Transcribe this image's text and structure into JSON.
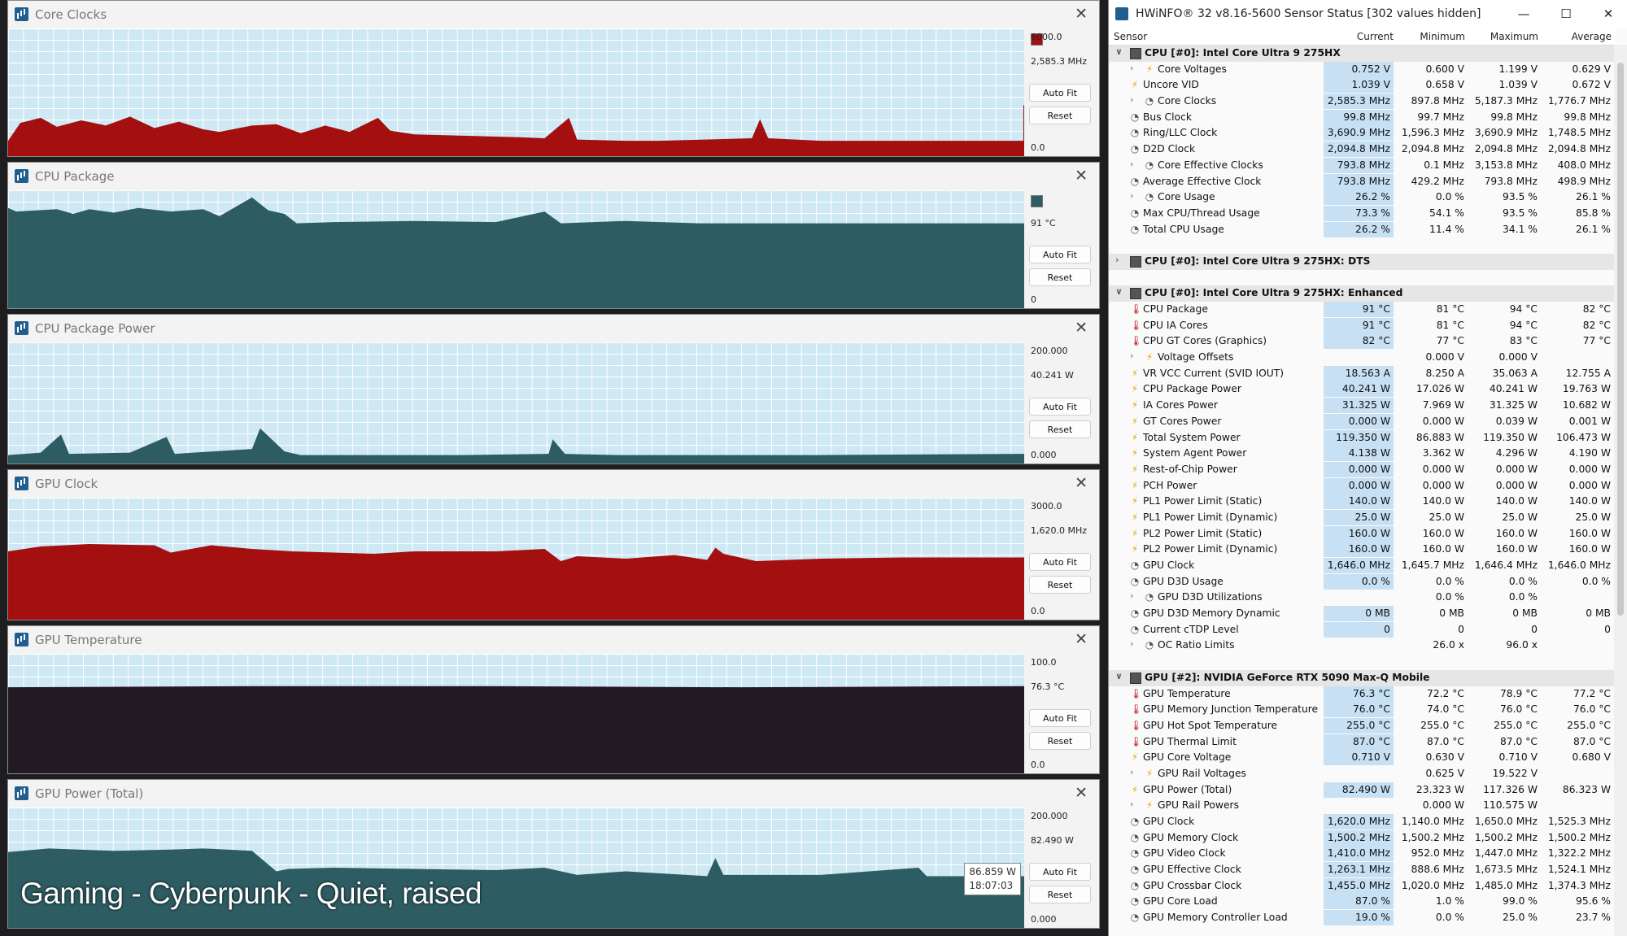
{
  "graphs": [
    {
      "title": "Core Clocks",
      "max": "6000.0",
      "current": "2,585.3 MHz",
      "min": "0.0",
      "auto_fit": "Auto Fit",
      "reset": "Reset",
      "color": "#a40f0f",
      "swatch": true,
      "series": [
        [
          0,
          0.12
        ],
        [
          15,
          0.26
        ],
        [
          40,
          0.3
        ],
        [
          60,
          0.23
        ],
        [
          90,
          0.28
        ],
        [
          120,
          0.24
        ],
        [
          150,
          0.31
        ],
        [
          180,
          0.22
        ],
        [
          210,
          0.27
        ],
        [
          240,
          0.21
        ],
        [
          260,
          0.19
        ],
        [
          300,
          0.24
        ],
        [
          330,
          0.25
        ],
        [
          360,
          0.18
        ],
        [
          390,
          0.24
        ],
        [
          420,
          0.19
        ],
        [
          455,
          0.3
        ],
        [
          470,
          0.2
        ],
        [
          500,
          0.17
        ],
        [
          560,
          0.16
        ],
        [
          620,
          0.15
        ],
        [
          660,
          0.14
        ],
        [
          690,
          0.3
        ],
        [
          700,
          0.13
        ],
        [
          760,
          0.12
        ],
        [
          800,
          0.12
        ],
        [
          915,
          0.14
        ],
        [
          925,
          0.29
        ],
        [
          935,
          0.14
        ],
        [
          1000,
          0.12
        ],
        [
          1100,
          0.12
        ],
        [
          1200,
          0.12
        ],
        [
          1249,
          0.12
        ],
        [
          1249,
          0.4
        ],
        [
          1251,
          0.4
        ],
        [
          1251,
          0.12
        ]
      ]
    },
    {
      "title": "CPU Package",
      "max": "",
      "current": "91 °C",
      "min": "0",
      "auto_fit": "Auto Fit",
      "reset": "Reset",
      "color": "#2d5c62",
      "swatch": true,
      "series": [
        [
          0,
          0.85
        ],
        [
          10,
          0.82
        ],
        [
          60,
          0.84
        ],
        [
          80,
          0.8
        ],
        [
          100,
          0.84
        ],
        [
          130,
          0.81
        ],
        [
          160,
          0.85
        ],
        [
          200,
          0.82
        ],
        [
          240,
          0.84
        ],
        [
          260,
          0.78
        ],
        [
          300,
          0.94
        ],
        [
          320,
          0.83
        ],
        [
          340,
          0.8
        ],
        [
          355,
          0.72
        ],
        [
          400,
          0.73
        ],
        [
          500,
          0.74
        ],
        [
          600,
          0.73
        ],
        [
          660,
          0.82
        ],
        [
          680,
          0.72
        ],
        [
          760,
          0.74
        ],
        [
          850,
          0.72
        ],
        [
          1000,
          0.72
        ],
        [
          1100,
          0.72
        ],
        [
          1250,
          0.72
        ]
      ]
    },
    {
      "title": "CPU Package Power",
      "max": "200.000",
      "current": "40.241 W",
      "min": "0.000",
      "auto_fit": "Auto Fit",
      "reset": "Reset",
      "color": "#2d5c62",
      "swatch": false,
      "series": [
        [
          0,
          0.07
        ],
        [
          40,
          0.09
        ],
        [
          65,
          0.24
        ],
        [
          75,
          0.08
        ],
        [
          150,
          0.09
        ],
        [
          195,
          0.22
        ],
        [
          205,
          0.08
        ],
        [
          300,
          0.12
        ],
        [
          310,
          0.29
        ],
        [
          340,
          0.1
        ],
        [
          360,
          0.07
        ],
        [
          560,
          0.07
        ],
        [
          665,
          0.08
        ],
        [
          670,
          0.2
        ],
        [
          685,
          0.08
        ],
        [
          750,
          0.07
        ],
        [
          1000,
          0.07
        ],
        [
          1250,
          0.08
        ]
      ]
    },
    {
      "title": "GPU Clock",
      "max": "3000.0",
      "current": "1,620.0 MHz",
      "min": "0.0",
      "auto_fit": "Auto Fit",
      "reset": "Reset",
      "color": "#a40f0f",
      "swatch": false,
      "series": [
        [
          0,
          0.56
        ],
        [
          40,
          0.6
        ],
        [
          100,
          0.62
        ],
        [
          180,
          0.61
        ],
        [
          200,
          0.55
        ],
        [
          250,
          0.61
        ],
        [
          300,
          0.58
        ],
        [
          350,
          0.56
        ],
        [
          450,
          0.54
        ],
        [
          500,
          0.56
        ],
        [
          600,
          0.56
        ],
        [
          660,
          0.58
        ],
        [
          680,
          0.48
        ],
        [
          700,
          0.52
        ],
        [
          760,
          0.5
        ],
        [
          820,
          0.53
        ],
        [
          860,
          0.49
        ],
        [
          870,
          0.59
        ],
        [
          880,
          0.54
        ],
        [
          920,
          0.48
        ],
        [
          1000,
          0.5
        ],
        [
          1100,
          0.51
        ],
        [
          1250,
          0.51
        ]
      ]
    },
    {
      "title": "GPU Temperature",
      "max": "100.0",
      "current": "76.3 °C",
      "min": "0.0",
      "auto_fit": "Auto Fit",
      "reset": "Reset",
      "color": "#231923",
      "swatch": false,
      "series": [
        [
          0,
          0.72
        ],
        [
          300,
          0.73
        ],
        [
          600,
          0.73
        ],
        [
          900,
          0.72
        ],
        [
          1250,
          0.73
        ]
      ]
    },
    {
      "title": "GPU Power (Total)",
      "max": "200.000",
      "current": "82.490 W",
      "min": "0.000",
      "auto_fit": "Auto Fit",
      "reset": "Reset",
      "color": "#2d5c62",
      "swatch": false,
      "series": [
        [
          0,
          0.63
        ],
        [
          50,
          0.66
        ],
        [
          130,
          0.64
        ],
        [
          200,
          0.65
        ],
        [
          240,
          0.66
        ],
        [
          300,
          0.64
        ],
        [
          330,
          0.47
        ],
        [
          345,
          0.49
        ],
        [
          400,
          0.5
        ],
        [
          500,
          0.49
        ],
        [
          600,
          0.48
        ],
        [
          660,
          0.5
        ],
        [
          700,
          0.44
        ],
        [
          760,
          0.47
        ],
        [
          860,
          0.43
        ],
        [
          870,
          0.58
        ],
        [
          880,
          0.44
        ],
        [
          1000,
          0.44
        ],
        [
          1120,
          0.5
        ],
        [
          1130,
          0.43
        ],
        [
          1250,
          0.43
        ]
      ]
    }
  ],
  "tooltip": {
    "value": "86.859 W",
    "time": "18:07:03"
  },
  "caption": "Gaming - Cyberpunk - Quiet, raised",
  "sensor": {
    "title": "HWiNFO® 32 v8.16-5600 Sensor Status [302 values hidden]",
    "headers": {
      "sensor": "Sensor",
      "current": "Current",
      "minimum": "Minimum",
      "maximum": "Maximum",
      "average": "Average"
    },
    "rows": [
      {
        "t": "group",
        "label": "CPU [#0]: Intel Core Ultra 9 275HX",
        "exp": "∨"
      },
      {
        "t": "row",
        "icon": "bolt",
        "exp": "›",
        "indent": 2,
        "label": "Core Voltages",
        "cur": "0.752 V",
        "min": "0.600 V",
        "max": "1.199 V",
        "avg": "0.629 V"
      },
      {
        "t": "row",
        "icon": "bolt",
        "indent": 1,
        "label": "Uncore VID",
        "cur": "1.039 V",
        "min": "0.658 V",
        "max": "1.039 V",
        "avg": "0.672 V"
      },
      {
        "t": "row",
        "icon": "clock",
        "exp": "›",
        "indent": 2,
        "label": "Core Clocks",
        "cur": "2,585.3 MHz",
        "min": "897.8 MHz",
        "max": "5,187.3 MHz",
        "avg": "1,776.7 MHz"
      },
      {
        "t": "row",
        "icon": "clock",
        "indent": 1,
        "label": "Bus Clock",
        "cur": "99.8 MHz",
        "min": "99.7 MHz",
        "max": "99.8 MHz",
        "avg": "99.8 MHz"
      },
      {
        "t": "row",
        "icon": "clock",
        "indent": 1,
        "label": "Ring/LLC Clock",
        "cur": "3,690.9 MHz",
        "min": "1,596.3 MHz",
        "max": "3,690.9 MHz",
        "avg": "1,748.5 MHz"
      },
      {
        "t": "row",
        "icon": "clock",
        "indent": 1,
        "label": "D2D Clock",
        "cur": "2,094.8 MHz",
        "min": "2,094.8 MHz",
        "max": "2,094.8 MHz",
        "avg": "2,094.8 MHz"
      },
      {
        "t": "row",
        "icon": "clock",
        "exp": "›",
        "indent": 2,
        "label": "Core Effective Clocks",
        "cur": "793.8 MHz",
        "min": "0.1 MHz",
        "max": "3,153.8 MHz",
        "avg": "408.0 MHz"
      },
      {
        "t": "row",
        "icon": "clock",
        "indent": 1,
        "label": "Average Effective Clock",
        "cur": "793.8 MHz",
        "min": "429.2 MHz",
        "max": "793.8 MHz",
        "avg": "498.9 MHz"
      },
      {
        "t": "row",
        "icon": "clock",
        "exp": "›",
        "indent": 2,
        "label": "Core Usage",
        "cur": "26.2 %",
        "min": "0.0 %",
        "max": "93.5 %",
        "avg": "26.1 %"
      },
      {
        "t": "row",
        "icon": "clock",
        "indent": 1,
        "label": "Max CPU/Thread Usage",
        "cur": "73.3 %",
        "min": "54.1 %",
        "max": "93.5 %",
        "avg": "85.8 %"
      },
      {
        "t": "row",
        "icon": "clock",
        "indent": 1,
        "label": "Total CPU Usage",
        "cur": "26.2 %",
        "min": "11.4 %",
        "max": "34.1 %",
        "avg": "26.1 %"
      },
      {
        "t": "blank"
      },
      {
        "t": "group",
        "label": "CPU [#0]: Intel Core Ultra 9 275HX: DTS",
        "exp": "›"
      },
      {
        "t": "blank"
      },
      {
        "t": "group",
        "label": "CPU [#0]: Intel Core Ultra 9 275HX: Enhanced",
        "exp": "∨"
      },
      {
        "t": "row",
        "icon": "temp",
        "indent": 1,
        "label": "CPU Package",
        "cur": "91 °C",
        "min": "81 °C",
        "max": "94 °C",
        "avg": "82 °C"
      },
      {
        "t": "row",
        "icon": "temp",
        "indent": 1,
        "label": "CPU IA Cores",
        "cur": "91 °C",
        "min": "81 °C",
        "max": "94 °C",
        "avg": "82 °C"
      },
      {
        "t": "row",
        "icon": "temp",
        "indent": 1,
        "label": "CPU GT Cores (Graphics)",
        "cur": "82 °C",
        "min": "77 °C",
        "max": "83 °C",
        "avg": "77 °C"
      },
      {
        "t": "row",
        "icon": "bolt",
        "exp": "›",
        "indent": 2,
        "label": "Voltage Offsets",
        "cur": "",
        "min": "0.000 V",
        "max": "0.000 V",
        "avg": ""
      },
      {
        "t": "row",
        "icon": "bolt",
        "indent": 1,
        "label": "VR VCC Current (SVID IOUT)",
        "cur": "18.563 A",
        "min": "8.250 A",
        "max": "35.063 A",
        "avg": "12.755 A"
      },
      {
        "t": "row",
        "icon": "bolt",
        "indent": 1,
        "label": "CPU Package Power",
        "cur": "40.241 W",
        "min": "17.026 W",
        "max": "40.241 W",
        "avg": "19.763 W"
      },
      {
        "t": "row",
        "icon": "bolt",
        "indent": 1,
        "label": "IA Cores Power",
        "cur": "31.325 W",
        "min": "7.969 W",
        "max": "31.325 W",
        "avg": "10.682 W"
      },
      {
        "t": "row",
        "icon": "bolt",
        "indent": 1,
        "label": "GT Cores Power",
        "cur": "0.000 W",
        "min": "0.000 W",
        "max": "0.039 W",
        "avg": "0.001 W"
      },
      {
        "t": "row",
        "icon": "bolt",
        "indent": 1,
        "label": "Total System Power",
        "cur": "119.350 W",
        "min": "86.883 W",
        "max": "119.350 W",
        "avg": "106.473 W"
      },
      {
        "t": "row",
        "icon": "bolt",
        "indent": 1,
        "label": "System Agent Power",
        "cur": "4.138 W",
        "min": "3.362 W",
        "max": "4.296 W",
        "avg": "4.190 W"
      },
      {
        "t": "row",
        "icon": "bolt",
        "indent": 1,
        "label": "Rest-of-Chip Power",
        "cur": "0.000 W",
        "min": "0.000 W",
        "max": "0.000 W",
        "avg": "0.000 W"
      },
      {
        "t": "row",
        "icon": "bolt",
        "indent": 1,
        "label": "PCH Power",
        "cur": "0.000 W",
        "min": "0.000 W",
        "max": "0.000 W",
        "avg": "0.000 W"
      },
      {
        "t": "row",
        "icon": "bolt",
        "indent": 1,
        "label": "PL1 Power Limit (Static)",
        "cur": "140.0 W",
        "min": "140.0 W",
        "max": "140.0 W",
        "avg": "140.0 W"
      },
      {
        "t": "row",
        "icon": "bolt",
        "indent": 1,
        "label": "PL1 Power Limit (Dynamic)",
        "cur": "25.0 W",
        "min": "25.0 W",
        "max": "25.0 W",
        "avg": "25.0 W"
      },
      {
        "t": "row",
        "icon": "bolt",
        "indent": 1,
        "label": "PL2 Power Limit (Static)",
        "cur": "160.0 W",
        "min": "160.0 W",
        "max": "160.0 W",
        "avg": "160.0 W"
      },
      {
        "t": "row",
        "icon": "bolt",
        "indent": 1,
        "label": "PL2 Power Limit (Dynamic)",
        "cur": "160.0 W",
        "min": "160.0 W",
        "max": "160.0 W",
        "avg": "160.0 W"
      },
      {
        "t": "row",
        "icon": "clock",
        "indent": 1,
        "label": "GPU Clock",
        "cur": "1,646.0 MHz",
        "min": "1,645.7 MHz",
        "max": "1,646.4 MHz",
        "avg": "1,646.0 MHz"
      },
      {
        "t": "row",
        "icon": "clock",
        "indent": 1,
        "label": "GPU D3D Usage",
        "cur": "0.0 %",
        "min": "0.0 %",
        "max": "0.0 %",
        "avg": "0.0 %"
      },
      {
        "t": "row",
        "icon": "clock",
        "exp": "›",
        "indent": 2,
        "label": "GPU D3D Utilizations",
        "cur": "",
        "min": "0.0 %",
        "max": "0.0 %",
        "avg": ""
      },
      {
        "t": "row",
        "icon": "clock",
        "indent": 1,
        "label": "GPU D3D Memory Dynamic",
        "cur": "0 MB",
        "min": "0 MB",
        "max": "0 MB",
        "avg": "0 MB"
      },
      {
        "t": "row",
        "icon": "clock",
        "indent": 1,
        "label": "Current cTDP Level",
        "cur": "0",
        "min": "0",
        "max": "0",
        "avg": "0"
      },
      {
        "t": "row",
        "icon": "clock",
        "exp": "›",
        "indent": 2,
        "label": "OC Ratio Limits",
        "cur": "",
        "min": "26.0 x",
        "max": "96.0 x",
        "avg": ""
      },
      {
        "t": "blank"
      },
      {
        "t": "group",
        "label": "GPU [#2]: NVIDIA  GeForce RTX 5090 Max-Q Mobile",
        "exp": "∨"
      },
      {
        "t": "row",
        "icon": "temp",
        "indent": 1,
        "label": "GPU Temperature",
        "cur": "76.3 °C",
        "min": "72.2 °C",
        "max": "78.9 °C",
        "avg": "77.2 °C"
      },
      {
        "t": "row",
        "icon": "temp",
        "indent": 1,
        "label": "GPU Memory Junction Temperature",
        "cur": "76.0 °C",
        "min": "74.0 °C",
        "max": "76.0 °C",
        "avg": "76.0 °C"
      },
      {
        "t": "row",
        "icon": "temp",
        "indent": 1,
        "label": "GPU Hot Spot Temperature",
        "cur": "255.0 °C",
        "min": "255.0 °C",
        "max": "255.0 °C",
        "avg": "255.0 °C"
      },
      {
        "t": "row",
        "icon": "temp",
        "indent": 1,
        "label": "GPU Thermal Limit",
        "cur": "87.0 °C",
        "min": "87.0 °C",
        "max": "87.0 °C",
        "avg": "87.0 °C"
      },
      {
        "t": "row",
        "icon": "bolt",
        "indent": 1,
        "label": "GPU Core Voltage",
        "cur": "0.710 V",
        "min": "0.630 V",
        "max": "0.710 V",
        "avg": "0.680 V"
      },
      {
        "t": "row",
        "icon": "bolt",
        "exp": "›",
        "indent": 2,
        "label": "GPU Rail Voltages",
        "cur": "",
        "min": "0.625 V",
        "max": "19.522 V",
        "avg": ""
      },
      {
        "t": "row",
        "icon": "bolt",
        "indent": 1,
        "label": "GPU Power (Total)",
        "cur": "82.490 W",
        "min": "23.323 W",
        "max": "117.326 W",
        "avg": "86.323 W"
      },
      {
        "t": "row",
        "icon": "bolt",
        "exp": "›",
        "indent": 2,
        "label": "GPU Rail Powers",
        "cur": "",
        "min": "0.000 W",
        "max": "110.575 W",
        "avg": ""
      },
      {
        "t": "row",
        "icon": "clock",
        "indent": 1,
        "label": "GPU Clock",
        "cur": "1,620.0 MHz",
        "min": "1,140.0 MHz",
        "max": "1,650.0 MHz",
        "avg": "1,525.3 MHz"
      },
      {
        "t": "row",
        "icon": "clock",
        "indent": 1,
        "label": "GPU Memory Clock",
        "cur": "1,500.2 MHz",
        "min": "1,500.2 MHz",
        "max": "1,500.2 MHz",
        "avg": "1,500.2 MHz"
      },
      {
        "t": "row",
        "icon": "clock",
        "indent": 1,
        "label": "GPU Video Clock",
        "cur": "1,410.0 MHz",
        "min": "952.0 MHz",
        "max": "1,447.0 MHz",
        "avg": "1,322.2 MHz"
      },
      {
        "t": "row",
        "icon": "clock",
        "indent": 1,
        "label": "GPU Effective Clock",
        "cur": "1,263.1 MHz",
        "min": "888.6 MHz",
        "max": "1,673.5 MHz",
        "avg": "1,524.1 MHz"
      },
      {
        "t": "row",
        "icon": "clock",
        "indent": 1,
        "label": "GPU Crossbar Clock",
        "cur": "1,455.0 MHz",
        "min": "1,020.0 MHz",
        "max": "1,485.0 MHz",
        "avg": "1,374.3 MHz"
      },
      {
        "t": "row",
        "icon": "clock",
        "indent": 1,
        "label": "GPU Core Load",
        "cur": "87.0 %",
        "min": "1.0 %",
        "max": "99.0 %",
        "avg": "95.6 %"
      },
      {
        "t": "row",
        "icon": "clock",
        "indent": 1,
        "label": "GPU Memory Controller Load",
        "cur": "19.0 %",
        "min": "0.0 %",
        "max": "25.0 %",
        "avg": "23.7 %"
      }
    ]
  }
}
